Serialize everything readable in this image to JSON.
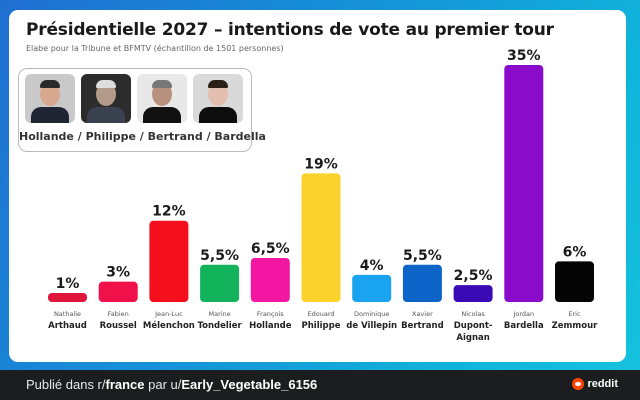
{
  "header": {
    "title": "Présidentielle 2027 – intentions de vote au premier tour",
    "subtitle": "Elabe pour la Tribune et  BFMTV (échantillon de 1501 personnes)"
  },
  "photos": {
    "caption": "Hollande / Philippe / Bertrand / Bardella",
    "people": [
      "Hollande",
      "Philippe",
      "Bertrand",
      "Bardella"
    ]
  },
  "chart_data": {
    "type": "bar",
    "title": "Présidentielle 2027 – intentions de vote au premier tour",
    "xlabel": "",
    "ylabel": "",
    "ylim": [
      0,
      35
    ],
    "grid": false,
    "candidates": [
      {
        "first": "Nathalie",
        "last": "Arthaud",
        "value": 1,
        "label": "1%",
        "color": "#e0173a"
      },
      {
        "first": "Fabien",
        "last": "Roussel",
        "value": 3,
        "label": "3%",
        "color": "#f0104a"
      },
      {
        "first": "Jean-Luc",
        "last": "Mélenchon",
        "value": 12,
        "label": "12%",
        "color": "#f40f1c"
      },
      {
        "first": "Marine",
        "last": "Tondelier",
        "value": 5.5,
        "label": "5,5%",
        "color": "#12b35a"
      },
      {
        "first": "François",
        "last": "Hollande",
        "value": 6.5,
        "label": "6,5%",
        "color": "#f216a3"
      },
      {
        "first": "Edouard",
        "last": "Philippe",
        "value": 19,
        "label": "19%",
        "color": "#fbd22c"
      },
      {
        "first": "Dominique",
        "last": "de Villepin",
        "value": 4,
        "label": "4%",
        "color": "#19a3f0"
      },
      {
        "first": "Xavier",
        "last": "Bertrand",
        "value": 5.5,
        "label": "5,5%",
        "color": "#0c64c9"
      },
      {
        "first": "Nicolas",
        "last": "Dupont-|Aignan",
        "value": 2.5,
        "label": "2,5%",
        "color": "#3a0bb5"
      },
      {
        "first": "Jordan",
        "last": "Bardella",
        "value": 35,
        "label": "35%",
        "color": "#8a0bc9"
      },
      {
        "first": "Eric",
        "last": "Zemmour",
        "value": 6,
        "label": "6%",
        "color": "#050505"
      }
    ]
  },
  "footer": {
    "prefix": "Publié dans r/",
    "subreddit": "france",
    "middle": " par u/",
    "user": "Early_Vegetable_6156",
    "brand": "reddit"
  }
}
